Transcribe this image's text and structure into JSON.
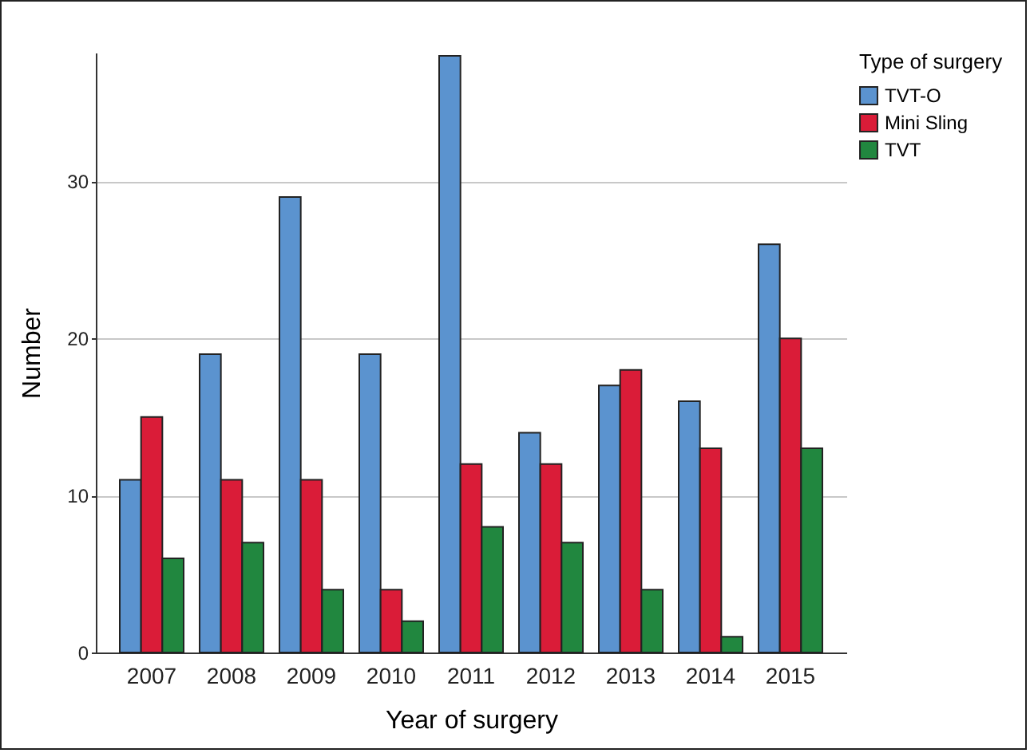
{
  "chart_data": {
    "type": "bar",
    "xlabel": "Year of surgery",
    "ylabel": "Number",
    "legend_title": "Type of surgery",
    "categories": [
      "2007",
      "2008",
      "2009",
      "2010",
      "2011",
      "2012",
      "2013",
      "2014",
      "2015"
    ],
    "series": [
      {
        "name": "TVT-O",
        "color": "#5b93cf",
        "values": [
          11,
          19,
          29,
          19,
          38,
          14,
          17,
          16,
          26
        ]
      },
      {
        "name": "Mini Sling",
        "color": "#da1c38",
        "values": [
          15,
          11,
          11,
          4,
          12,
          12,
          18,
          13,
          20
        ]
      },
      {
        "name": "TVT",
        "color": "#21873f",
        "values": [
          6,
          7,
          4,
          2,
          8,
          7,
          4,
          1,
          13
        ]
      }
    ],
    "ylim": [
      0,
      38.2
    ],
    "yticks": [
      0,
      10,
      20,
      30
    ],
    "grid": "y",
    "legend": "top right"
  }
}
